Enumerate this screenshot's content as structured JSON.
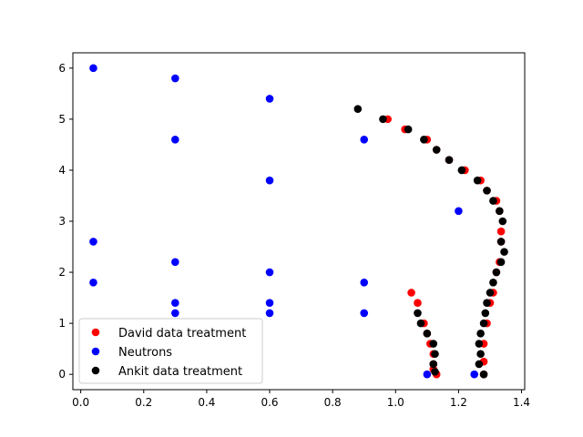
{
  "chart_data": {
    "type": "scatter",
    "xlim": [
      -0.025,
      1.41
    ],
    "ylim": [
      -0.3,
      6.3
    ],
    "xticks": [
      0.0,
      0.2,
      0.4,
      0.6,
      0.8,
      1.0,
      1.2,
      1.4
    ],
    "xtick_labels": [
      "0.0",
      "0.2",
      "0.4",
      "0.6",
      "0.8",
      "1.0",
      "1.2",
      "1.4"
    ],
    "yticks": [
      0,
      1,
      2,
      3,
      4,
      5,
      6
    ],
    "ytick_labels": [
      "0",
      "1",
      "2",
      "3",
      "4",
      "5",
      "6"
    ],
    "grid": false,
    "legend_position": "lower-left",
    "series": [
      {
        "name": "David data treatment",
        "color": "#ff0000",
        "points": [
          [
            1.13,
            0.0
          ],
          [
            1.12,
            0.1
          ],
          [
            1.12,
            0.2
          ],
          [
            1.12,
            0.4
          ],
          [
            1.11,
            0.6
          ],
          [
            1.1,
            0.8
          ],
          [
            1.09,
            1.0
          ],
          [
            1.07,
            1.4
          ],
          [
            1.05,
            1.6
          ],
          [
            1.28,
            0.0
          ],
          [
            1.28,
            0.25
          ],
          [
            1.28,
            0.6
          ],
          [
            1.29,
            1.0
          ],
          [
            1.3,
            1.4
          ],
          [
            1.31,
            1.6
          ],
          [
            1.32,
            2.0
          ],
          [
            1.33,
            2.2
          ],
          [
            1.335,
            2.6
          ],
          [
            1.335,
            2.8
          ],
          [
            1.33,
            3.2
          ],
          [
            1.32,
            3.4
          ],
          [
            1.29,
            3.6
          ],
          [
            1.27,
            3.8
          ],
          [
            1.22,
            4.0
          ],
          [
            1.17,
            4.2
          ],
          [
            1.13,
            4.4
          ],
          [
            1.1,
            4.6
          ],
          [
            1.03,
            4.8
          ],
          [
            0.975,
            5.0
          ]
        ]
      },
      {
        "name": "Neutrons",
        "color": "#0000ff",
        "points": [
          [
            0.04,
            6.0
          ],
          [
            0.3,
            5.8
          ],
          [
            0.6,
            5.4
          ],
          [
            0.3,
            4.6
          ],
          [
            0.9,
            4.6
          ],
          [
            0.6,
            3.8
          ],
          [
            1.2,
            3.2
          ],
          [
            0.04,
            2.6
          ],
          [
            0.3,
            2.2
          ],
          [
            0.6,
            2.0
          ],
          [
            0.04,
            1.8
          ],
          [
            0.9,
            1.8
          ],
          [
            0.3,
            1.4
          ],
          [
            0.6,
            1.4
          ],
          [
            0.3,
            1.2
          ],
          [
            0.6,
            1.2
          ],
          [
            0.9,
            1.2
          ],
          [
            1.1,
            0.0
          ],
          [
            1.25,
            0.0
          ]
        ]
      },
      {
        "name": "Ankit data treatment",
        "color": "#000000",
        "points": [
          [
            0.88,
            5.2
          ],
          [
            0.96,
            5.0
          ],
          [
            1.04,
            4.8
          ],
          [
            1.09,
            4.6
          ],
          [
            1.13,
            4.4
          ],
          [
            1.17,
            4.2
          ],
          [
            1.21,
            4.0
          ],
          [
            1.26,
            3.8
          ],
          [
            1.29,
            3.6
          ],
          [
            1.31,
            3.4
          ],
          [
            1.33,
            3.2
          ],
          [
            1.34,
            3.0
          ],
          [
            1.335,
            2.6
          ],
          [
            1.345,
            2.4
          ],
          [
            1.335,
            2.2
          ],
          [
            1.32,
            2.0
          ],
          [
            1.31,
            1.8
          ],
          [
            1.3,
            1.6
          ],
          [
            1.29,
            1.4
          ],
          [
            1.285,
            1.2
          ],
          [
            1.28,
            1.0
          ],
          [
            1.27,
            0.8
          ],
          [
            1.265,
            0.6
          ],
          [
            1.27,
            0.4
          ],
          [
            1.265,
            0.2
          ],
          [
            1.28,
            0.0
          ],
          [
            1.08,
            1.0
          ],
          [
            1.07,
            1.2
          ],
          [
            1.1,
            0.8
          ],
          [
            1.12,
            0.6
          ],
          [
            1.125,
            0.4
          ],
          [
            1.12,
            0.2
          ],
          [
            1.125,
            0.05
          ]
        ]
      }
    ]
  }
}
